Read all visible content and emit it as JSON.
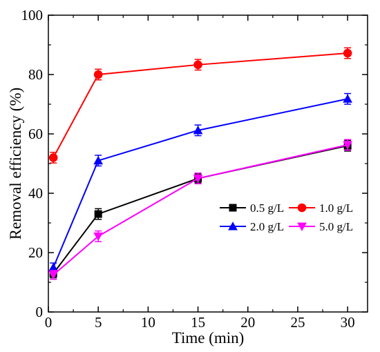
{
  "chart_data": {
    "type": "line",
    "title": "",
    "xlabel": "Time (min)",
    "ylabel": "Removal efficiency (%)",
    "xlim": [
      0,
      32
    ],
    "ylim": [
      0,
      100
    ],
    "xticks": [
      0,
      5,
      10,
      15,
      20,
      25,
      30
    ],
    "yticks": [
      0,
      20,
      40,
      60,
      80,
      100
    ],
    "grid": false,
    "legend_position": "right-middle",
    "x": [
      0.5,
      5,
      15,
      30
    ],
    "series": [
      {
        "name": "0.5 g/L",
        "color": "#000000",
        "marker": "square",
        "values": [
          13,
          33,
          45,
          56
        ],
        "errors": [
          1.5,
          1.8,
          1.5,
          1.8
        ]
      },
      {
        "name": "1.0 g/L",
        "color": "#ff0000",
        "marker": "circle",
        "values": [
          52,
          80,
          83.3,
          87.2
        ],
        "errors": [
          1.8,
          1.8,
          1.8,
          1.8
        ]
      },
      {
        "name": "2.0 g/L",
        "color": "#0000ff",
        "marker": "triangle-up",
        "values": [
          15,
          51,
          61.2,
          71.8
        ],
        "errors": [
          1.5,
          1.8,
          1.8,
          1.8
        ]
      },
      {
        "name": "5.0 g/L",
        "color": "#ff00ff",
        "marker": "triangle-down",
        "values": [
          12.5,
          25.5,
          45,
          56.3
        ],
        "errors": [
          1.5,
          1.8,
          1.8,
          1.8
        ]
      }
    ]
  }
}
